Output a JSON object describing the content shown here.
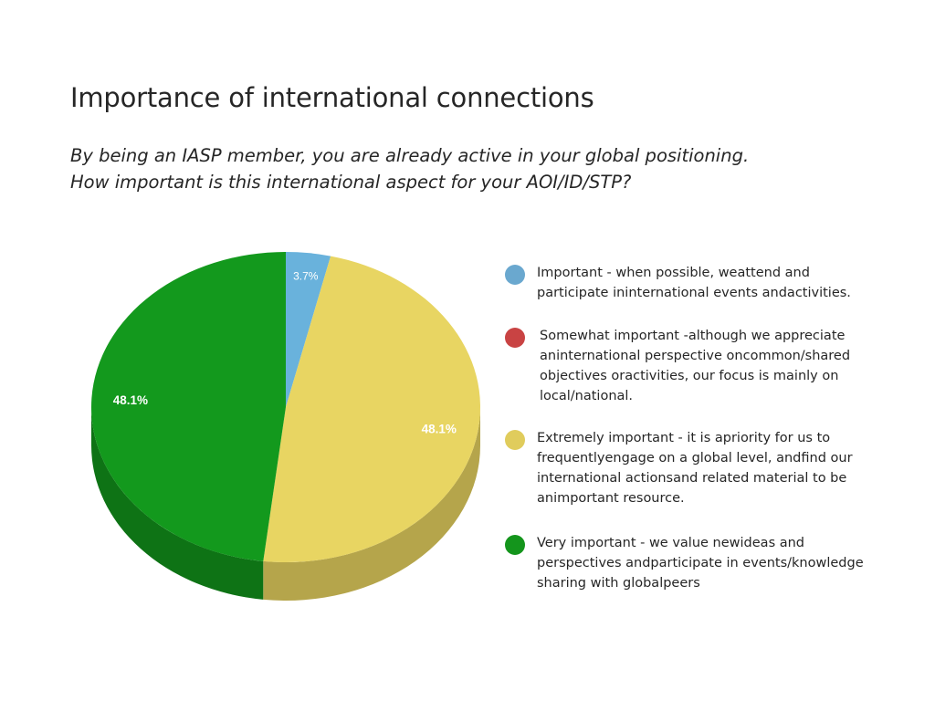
{
  "page": {
    "title": "Importance of international connections",
    "subtitle_line1": "By being an IASP member, you are already active in your global positioning.",
    "subtitle_line2": "How important is this international aspect for your AOI/ID/STP?"
  },
  "chart_data": {
    "type": "pie",
    "style": "3d",
    "legend_position": "right",
    "slices": [
      {
        "label": "Important - when possible, weattend and participate ininternational events andactivities.",
        "value": 3.7,
        "display": "3.7%",
        "color": "#69b2dc",
        "side_color": "#4d8cb0",
        "legend_dot_color": "#6aa8cf"
      },
      {
        "label": "Somewhat important -although we appreciate aninternational perspective oncommon/shared objectives oractivities, our focus is mainly on local/national.",
        "value": 0,
        "display": "0%",
        "color": "#c94343",
        "side_color": "#9e3333",
        "legend_dot_color": "#c94343"
      },
      {
        "label": "Extremely important - it is apriority for us to frequentlyengage on a global level, andfind our international actionsand related material to be animportant resource.",
        "value": 48.1,
        "display": "48.1%",
        "color": "#e8d562",
        "side_color": "#b5a54b",
        "legend_dot_color": "#e0cc5c"
      },
      {
        "label": "Very important - we value newideas and perspectives andparticipate in events/knowledge sharing with globalpeers",
        "value": 48.1,
        "display": "48.1%",
        "color": "#13991d",
        "side_color": "#0e7315",
        "legend_dot_color": "#14951c"
      }
    ],
    "legend_lines": [
      [
        "Important - when possible, weattend and",
        "participate ininternational events andactivities."
      ],
      [
        "Somewhat important -although we appreciate",
        "aninternational perspective oncommon/shared",
        "objectives oractivities, our focus is mainly on",
        "local/national."
      ],
      [
        "Extremely important - it is apriority for us to",
        "frequentlyengage on a global level, andfind our",
        "international actionsand related material to be",
        "animportant resource."
      ],
      [
        "Very important - we value newideas and",
        "perspectives andparticipate in events/knowledge",
        "sharing with globalpeers"
      ]
    ]
  }
}
